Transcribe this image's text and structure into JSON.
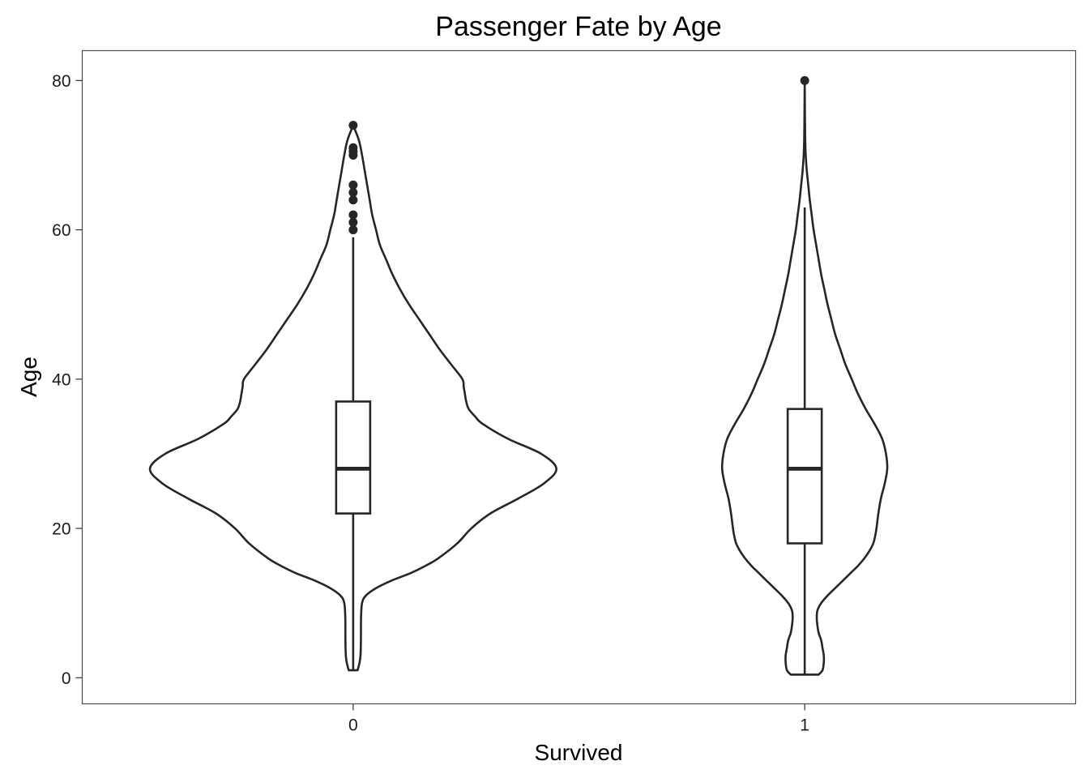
{
  "chart_data": {
    "type": "violin",
    "title": "Passenger Fate by Age",
    "xlabel": "Survived",
    "ylabel": "Age",
    "categories": [
      "0",
      "1"
    ],
    "ylim": [
      -3.5,
      84
    ],
    "yticks": [
      0,
      20,
      40,
      60,
      80
    ],
    "grid": false,
    "legend": "none",
    "colors": {
      "line": "#262626",
      "panel_border": "#4d4d4d",
      "background": "#ffffff"
    },
    "series": [
      {
        "category": "0",
        "box": {
          "min": 1,
          "q1": 22,
          "median": 28,
          "q3": 37,
          "max": 59
        },
        "outliers": [
          60,
          61,
          62,
          64,
          65,
          66,
          70,
          70.5,
          71,
          74
        ],
        "density_profile": [
          [
            1,
            0.035
          ],
          [
            2,
            0.05
          ],
          [
            3,
            0.058
          ],
          [
            5,
            0.061
          ],
          [
            8,
            0.062
          ],
          [
            10,
            0.07
          ],
          [
            11,
            0.1
          ],
          [
            12,
            0.18
          ],
          [
            13,
            0.3
          ],
          [
            14,
            0.45
          ],
          [
            15,
            0.57
          ],
          [
            16,
            0.67
          ],
          [
            18,
            0.82
          ],
          [
            20,
            0.93
          ],
          [
            22,
            1.08
          ],
          [
            24,
            1.3
          ],
          [
            26,
            1.5
          ],
          [
            28,
            1.6
          ],
          [
            30,
            1.48
          ],
          [
            32,
            1.22
          ],
          [
            34,
            1.02
          ],
          [
            35,
            0.96
          ],
          [
            36,
            0.91
          ],
          [
            37,
            0.89
          ],
          [
            38,
            0.88
          ],
          [
            39,
            0.87
          ],
          [
            40,
            0.86
          ],
          [
            42,
            0.77
          ],
          [
            44,
            0.68
          ],
          [
            46,
            0.6
          ],
          [
            48,
            0.52
          ],
          [
            50,
            0.44
          ],
          [
            52,
            0.37
          ],
          [
            54,
            0.31
          ],
          [
            56,
            0.26
          ],
          [
            58,
            0.21
          ],
          [
            60,
            0.18
          ],
          [
            62,
            0.15
          ],
          [
            64,
            0.13
          ],
          [
            66,
            0.11
          ],
          [
            68,
            0.09
          ],
          [
            70,
            0.07
          ],
          [
            72,
            0.045
          ],
          [
            74,
            0.0
          ]
        ]
      },
      {
        "category": "1",
        "box": {
          "min": 0.42,
          "q1": 18,
          "median": 28,
          "q3": 36,
          "max": 63
        },
        "outliers": [
          80
        ],
        "density_profile": [
          [
            0.42,
            0.11
          ],
          [
            1,
            0.14
          ],
          [
            2,
            0.15
          ],
          [
            3,
            0.15
          ],
          [
            4,
            0.14
          ],
          [
            5,
            0.13
          ],
          [
            6,
            0.11
          ],
          [
            7,
            0.1
          ],
          [
            8,
            0.095
          ],
          [
            9,
            0.1
          ],
          [
            10,
            0.13
          ],
          [
            11,
            0.18
          ],
          [
            12,
            0.24
          ],
          [
            13,
            0.3
          ],
          [
            14,
            0.36
          ],
          [
            15,
            0.42
          ],
          [
            16,
            0.47
          ],
          [
            17,
            0.51
          ],
          [
            18,
            0.54
          ],
          [
            19,
            0.555
          ],
          [
            20,
            0.565
          ],
          [
            22,
            0.58
          ],
          [
            24,
            0.6
          ],
          [
            26,
            0.63
          ],
          [
            28,
            0.65
          ],
          [
            30,
            0.64
          ],
          [
            32,
            0.61
          ],
          [
            34,
            0.55
          ],
          [
            36,
            0.48
          ],
          [
            38,
            0.42
          ],
          [
            40,
            0.37
          ],
          [
            42,
            0.32
          ],
          [
            44,
            0.28
          ],
          [
            46,
            0.24
          ],
          [
            48,
            0.21
          ],
          [
            50,
            0.18
          ],
          [
            52,
            0.155
          ],
          [
            54,
            0.13
          ],
          [
            56,
            0.11
          ],
          [
            58,
            0.09
          ],
          [
            60,
            0.07
          ],
          [
            62,
            0.055
          ],
          [
            64,
            0.04
          ],
          [
            66,
            0.028
          ],
          [
            68,
            0.016
          ],
          [
            70,
            0.008
          ],
          [
            72,
            0.004
          ],
          [
            75,
            0.002
          ],
          [
            80,
            0.0
          ]
        ]
      }
    ]
  }
}
